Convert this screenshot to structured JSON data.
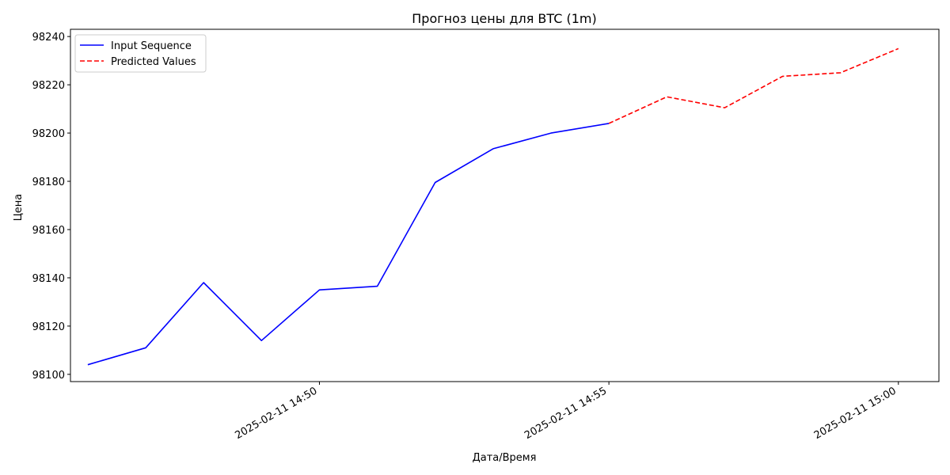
{
  "chart_data": {
    "type": "line",
    "title": "Прогноз цены для BTC (1m)",
    "xlabel": "Дата/Время",
    "ylabel": "Цена",
    "x_tick_labels": [
      "2025-02-11 14:50",
      "2025-02-11 14:55",
      "2025-02-11 15:00"
    ],
    "y_ticks": [
      98100,
      98120,
      98140,
      98160,
      98180,
      98200,
      98220,
      98240
    ],
    "ylim": [
      98097,
      98243
    ],
    "xlim": [
      "2025-02-11 14:45:42",
      "2025-02-11 15:00:42"
    ],
    "grid": false,
    "legend_position": "top-left",
    "series": [
      {
        "name": "Input Sequence",
        "color": "#0000ff",
        "style": "solid",
        "x": [
          "2025-02-11 14:46",
          "2025-02-11 14:47",
          "2025-02-11 14:48",
          "2025-02-11 14:49",
          "2025-02-11 14:50",
          "2025-02-11 14:51",
          "2025-02-11 14:52",
          "2025-02-11 14:53",
          "2025-02-11 14:54",
          "2025-02-11 14:55"
        ],
        "values": [
          98104,
          98111,
          98138,
          98114,
          98135,
          98136.5,
          98179.5,
          98193.5,
          98200,
          98204
        ]
      },
      {
        "name": "Predicted Values",
        "color": "#ff0000",
        "style": "dashed",
        "x": [
          "2025-02-11 14:55",
          "2025-02-11 14:56",
          "2025-02-11 14:57",
          "2025-02-11 14:58",
          "2025-02-11 14:59",
          "2025-02-11 15:00"
        ],
        "values": [
          98204,
          98215,
          98210.5,
          98223.5,
          98225,
          98235
        ]
      }
    ]
  }
}
